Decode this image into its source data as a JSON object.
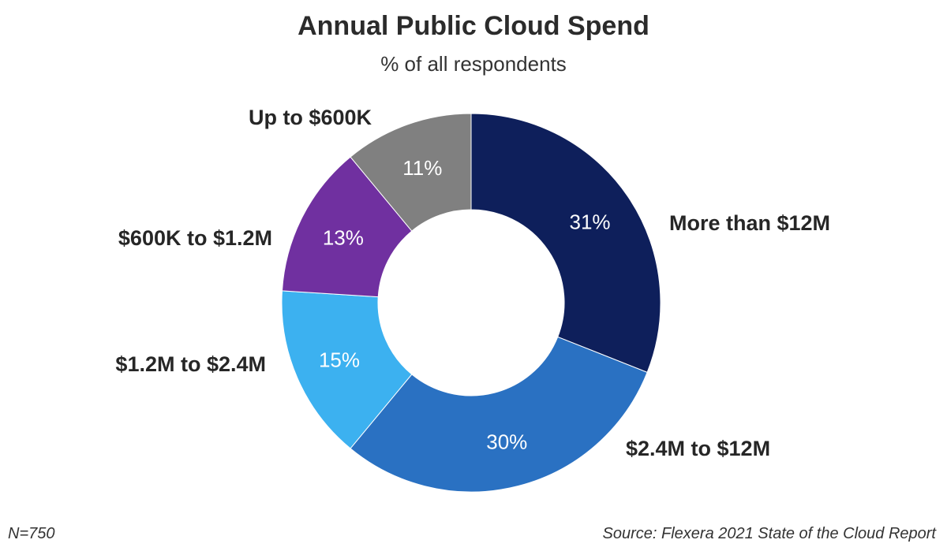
{
  "chart_data": {
    "type": "pie",
    "style": "donut",
    "title": "Annual Public Cloud Spend",
    "subtitle": "% of all respondents",
    "categories": [
      "More than $12M",
      "$2.4M to $12M",
      "$1.2M to $2.4M",
      "$600K to $1.2M",
      "Up to $600K"
    ],
    "values": [
      31,
      30,
      15,
      13,
      11
    ],
    "value_labels": [
      "31%",
      "30%",
      "15%",
      "13%",
      "11%"
    ],
    "colors": [
      "#0e1f5b",
      "#2a71c2",
      "#3cb1f0",
      "#7030a0",
      "#808080"
    ],
    "unit": "%"
  },
  "footer": {
    "sample_size": "N=750",
    "source": "Source: Flexera 2021 State of the Cloud Report"
  }
}
